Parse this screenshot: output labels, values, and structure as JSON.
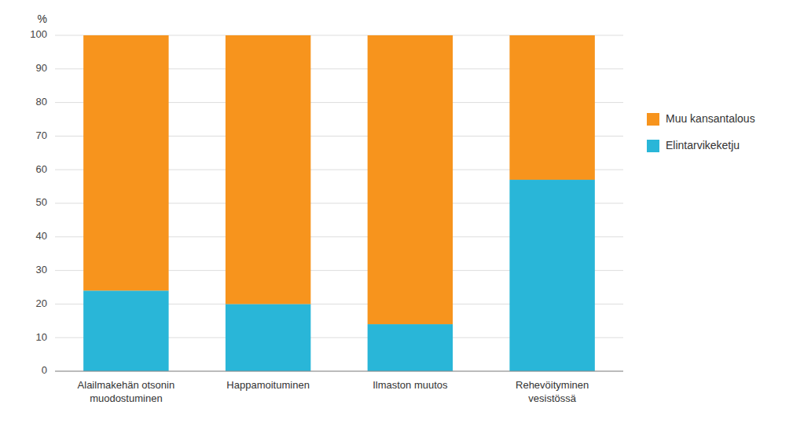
{
  "chart_data": {
    "type": "bar",
    "stacked": true,
    "ylabel": "%",
    "categories": [
      "Alailmakehän otsonin\nmuodostuminen",
      "Happamoituminen",
      "Ilmaston muutos",
      "Rehevöityminen\nvesistössä"
    ],
    "series": [
      {
        "name": "Elintarvikeketju",
        "color": "#29B6D8",
        "values": [
          24,
          20,
          14,
          57
        ]
      },
      {
        "name": "Muu kansantalous",
        "color": "#F7941D",
        "values": [
          76,
          80,
          86,
          43
        ]
      }
    ],
    "ylim": [
      0,
      100
    ],
    "yticks": [
      0,
      10,
      20,
      30,
      40,
      50,
      60,
      70,
      80,
      90,
      100
    ],
    "grid": true,
    "legend": "right"
  }
}
